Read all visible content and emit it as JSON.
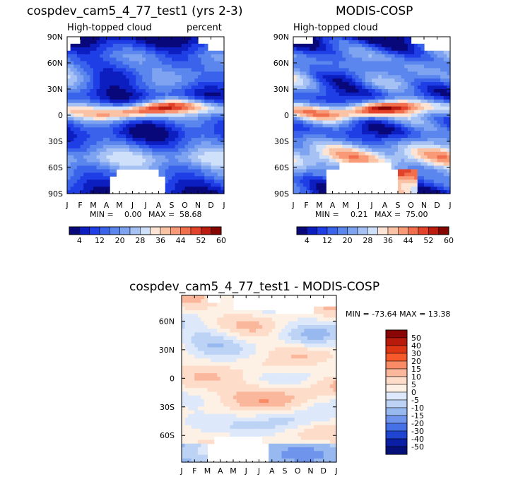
{
  "chart_data": [
    {
      "type": "heatmap",
      "title": "cospdev_cam5_4_77_test1 (yrs 2-3)",
      "left_label": "High-topped cloud",
      "right_label": "percent",
      "x_ticks": [
        "J",
        "F",
        "M",
        "A",
        "M",
        "J",
        "J",
        "A",
        "S",
        "O",
        "N",
        "D",
        "J"
      ],
      "y_ticks": [
        "90N",
        "60N",
        "30N",
        "0",
        "30S",
        "60S",
        "90S"
      ],
      "ylim": [
        -90,
        90
      ],
      "stats": {
        "min_label": "MIN =",
        "min": "0.00",
        "max_label": "MAX =",
        "max": "58.68"
      },
      "colorbar_labels": [
        "4",
        "12",
        "20",
        "28",
        "36",
        "44",
        "52",
        "60"
      ]
    },
    {
      "type": "heatmap",
      "title": "MODIS-COSP",
      "left_label": "High-topped cloud",
      "x_ticks": [
        "J",
        "F",
        "M",
        "A",
        "M",
        "J",
        "J",
        "A",
        "S",
        "O",
        "N",
        "D",
        "J"
      ],
      "y_ticks": [
        "90N",
        "60N",
        "30N",
        "0",
        "30S",
        "60S",
        "90S"
      ],
      "ylim": [
        -90,
        90
      ],
      "stats": {
        "min_label": "MIN =",
        "min": "0.21",
        "max_label": "MAX =",
        "max": "75.00"
      },
      "colorbar_labels": [
        "4",
        "12",
        "20",
        "28",
        "36",
        "44",
        "52",
        "60"
      ]
    },
    {
      "type": "heatmap",
      "title": "cospdev_cam5_4_77_test1 - MODIS-COSP",
      "x_ticks": [
        "J",
        "F",
        "M",
        "A",
        "M",
        "J",
        "J",
        "A",
        "S",
        "O",
        "N",
        "D",
        "J"
      ],
      "y_ticks": [
        "60N",
        "30N",
        "0",
        "30S",
        "60S"
      ],
      "stats_text": "MIN = -73.64 MAX =  13.38",
      "colorbar_labels": [
        "50",
        "40",
        "30",
        "20",
        "15",
        "10",
        "5",
        "0",
        "-5",
        "-10",
        "-15",
        "-20",
        "-30",
        "-40",
        "-50"
      ]
    }
  ],
  "palettes": {
    "abs": [
      "#08087a",
      "#0c1ec0",
      "#1f3ee6",
      "#3a63ec",
      "#5a86ee",
      "#7ea3f0",
      "#a6c1f4",
      "#cfe0fa",
      "#fde4d4",
      "#fbc3a6",
      "#f89a78",
      "#f26f4e",
      "#e3422b",
      "#bd1d10",
      "#850500"
    ],
    "diff": [
      "#8a0606",
      "#b81a0c",
      "#de3515",
      "#f65a2a",
      "#f98b66",
      "#fbb79c",
      "#fddcc9",
      "#fdf0e4",
      "#dde9fb",
      "#bcd3f6",
      "#98b8f0",
      "#6f94ec",
      "#4670e6",
      "#1f45d2",
      "#0a1ea6",
      "#05107a"
    ]
  }
}
